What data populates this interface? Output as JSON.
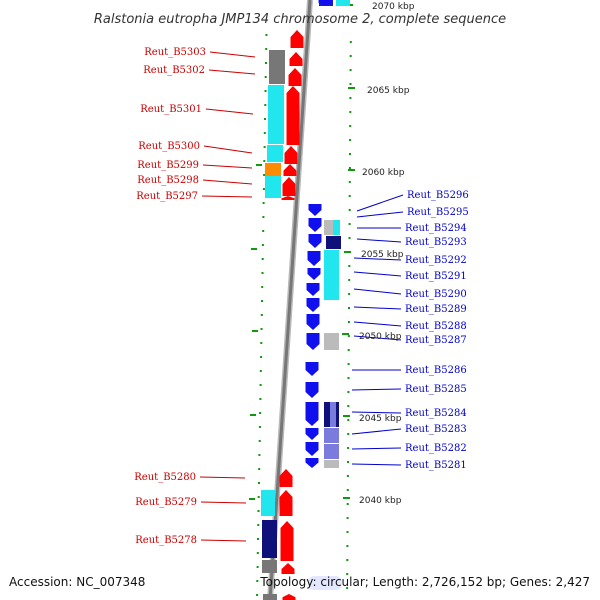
{
  "title": "Ralstonia eutropha JMP134 chromosome 2, complete sequence",
  "footer": {
    "accession": "Accession: NC_007348",
    "topology": "Topology: circular; Length: 2,726,152 bp; Genes: 2,427"
  },
  "scale_labels": [
    "2070 kbp",
    "2065 kbp",
    "2060 kbp",
    "2055 kbp",
    "2050 kbp",
    "2045 kbp",
    "2040 kbp"
  ],
  "left_strand_genes": [
    "Reut_B5303",
    "Reut_B5302",
    "Reut_B5301",
    "Reut_B5300",
    "Reut_B5299",
    "Reut_B5298",
    "Reut_B5297",
    "Reut_B5280",
    "Reut_B5279",
    "Reut_B5278"
  ],
  "right_strand_genes": [
    "Reut_B5296",
    "Reut_B5295",
    "Reut_B5294",
    "Reut_B5293",
    "Reut_B5292",
    "Reut_B5291",
    "Reut_B5290",
    "Reut_B5289",
    "Reut_B5288",
    "Reut_B5287",
    "Reut_B5286",
    "Reut_B5285",
    "Reut_B5284",
    "Reut_B5283",
    "Reut_B5282",
    "Reut_B5281"
  ],
  "colors": {
    "forward_gene": "#ff0000",
    "reverse_gene": "#1010ee",
    "backbone": "#888888",
    "tick": "#119911",
    "cyan": "#22e6ee",
    "navy": "#10107a",
    "grey": "#777777",
    "light_grey": "#bbbbbb",
    "orange": "#ff8c00",
    "lavender": "#7b7bdd"
  }
}
